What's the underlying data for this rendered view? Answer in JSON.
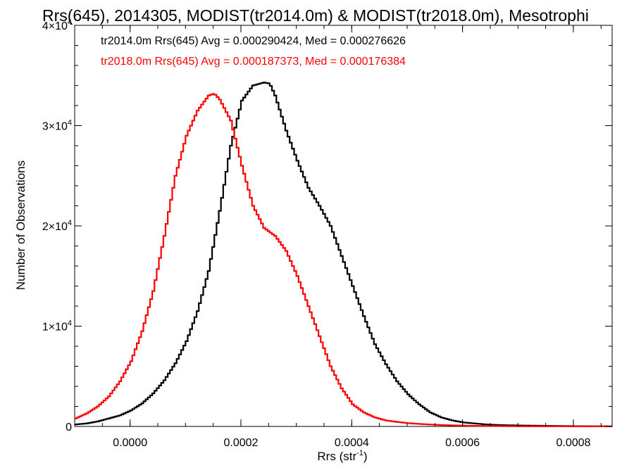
{
  "chart_data": {
    "type": "line",
    "title": "Rrs(645), 2014305, MODIST(tr2014.0m) & MODIST(tr2018.0m), Mesotrophi",
    "xlabel": "Rrs (str",
    "xlabel_sup": "-1",
    "xlabel_end": ")",
    "ylabel": "Number of Observations",
    "xlim": [
      -0.0001,
      0.00087
    ],
    "ylim": [
      0,
      40000
    ],
    "grid": false,
    "x_ticks": [
      {
        "value": 0.0,
        "label": "0.0000"
      },
      {
        "value": 0.0002,
        "label": "0.0002"
      },
      {
        "value": 0.0004,
        "label": "0.0004"
      },
      {
        "value": 0.0006,
        "label": "0.0006"
      },
      {
        "value": 0.0008,
        "label": "0.0008"
      }
    ],
    "y_ticks": [
      {
        "value": 0,
        "mant": "0",
        "exp": ""
      },
      {
        "value": 10000,
        "mant": "1×10",
        "exp": "4"
      },
      {
        "value": 20000,
        "mant": "2×10",
        "exp": "4"
      },
      {
        "value": 30000,
        "mant": "3×10",
        "exp": "4"
      },
      {
        "value": 40000,
        "mant": "4×10",
        "exp": "4"
      }
    ],
    "annotations": [
      {
        "text": "tr2014.0m Rrs(645) Avg = 0.000290424, Med = 0.000276626",
        "color": "#000000"
      },
      {
        "text": "tr2018.0m Rrs(645) Avg = 0.000187373, Med = 0.000176384",
        "color": "#ff0000"
      }
    ],
    "series": [
      {
        "color": "#000000",
        "x": [
          -0.0001,
          -8e-05,
          -6e-05,
          -4e-05,
          -2e-05,
          0.0,
          2e-05,
          4e-05,
          6e-05,
          8e-05,
          0.0001,
          0.00012,
          0.00014,
          0.00016,
          0.00018,
          0.0002,
          0.00022,
          0.00024,
          0.00025,
          0.00026,
          0.00028,
          0.0003,
          0.00032,
          0.00034,
          0.00036,
          0.00038,
          0.0004,
          0.00042,
          0.00044,
          0.00046,
          0.00048,
          0.0005,
          0.00052,
          0.00054,
          0.00056,
          0.00058,
          0.0006,
          0.00062,
          0.00064,
          0.00066,
          0.00068,
          0.0007,
          0.00075,
          0.0008,
          0.00087
        ],
        "y": [
          200,
          300,
          500,
          800,
          1100,
          1600,
          2300,
          3300,
          4600,
          6300,
          8500,
          11500,
          15500,
          21500,
          28000,
          32500,
          34000,
          34300,
          34200,
          33000,
          29500,
          26500,
          23800,
          22000,
          20000,
          17000,
          14000,
          11000,
          8200,
          6200,
          4500,
          3200,
          2200,
          1400,
          900,
          600,
          400,
          300,
          200,
          150,
          120,
          100,
          60,
          30,
          10
        ]
      },
      {
        "color": "#ff0000",
        "x": [
          -0.0001,
          -8e-05,
          -6e-05,
          -4e-05,
          -2e-05,
          0.0,
          2e-05,
          4e-05,
          6e-05,
          8e-05,
          0.0001,
          0.00012,
          0.00014,
          0.00015,
          0.00016,
          0.00018,
          0.0002,
          0.00022,
          0.00024,
          0.00026,
          0.00028,
          0.0003,
          0.00032,
          0.00034,
          0.00036,
          0.00038,
          0.0004,
          0.00042,
          0.00044,
          0.00046,
          0.00048,
          0.0005,
          0.00052,
          0.00054,
          0.00056,
          0.0006,
          0.00065,
          0.0007,
          0.00087
        ],
        "y": [
          800,
          1300,
          2000,
          3000,
          4500,
          6500,
          9500,
          13500,
          19000,
          25000,
          29000,
          31500,
          33000,
          33200,
          32600,
          30500,
          26000,
          22000,
          19800,
          19000,
          17500,
          15000,
          12000,
          9000,
          6000,
          3800,
          2200,
          1400,
          900,
          600,
          450,
          330,
          250,
          190,
          140,
          80,
          40,
          20,
          5
        ]
      }
    ]
  }
}
